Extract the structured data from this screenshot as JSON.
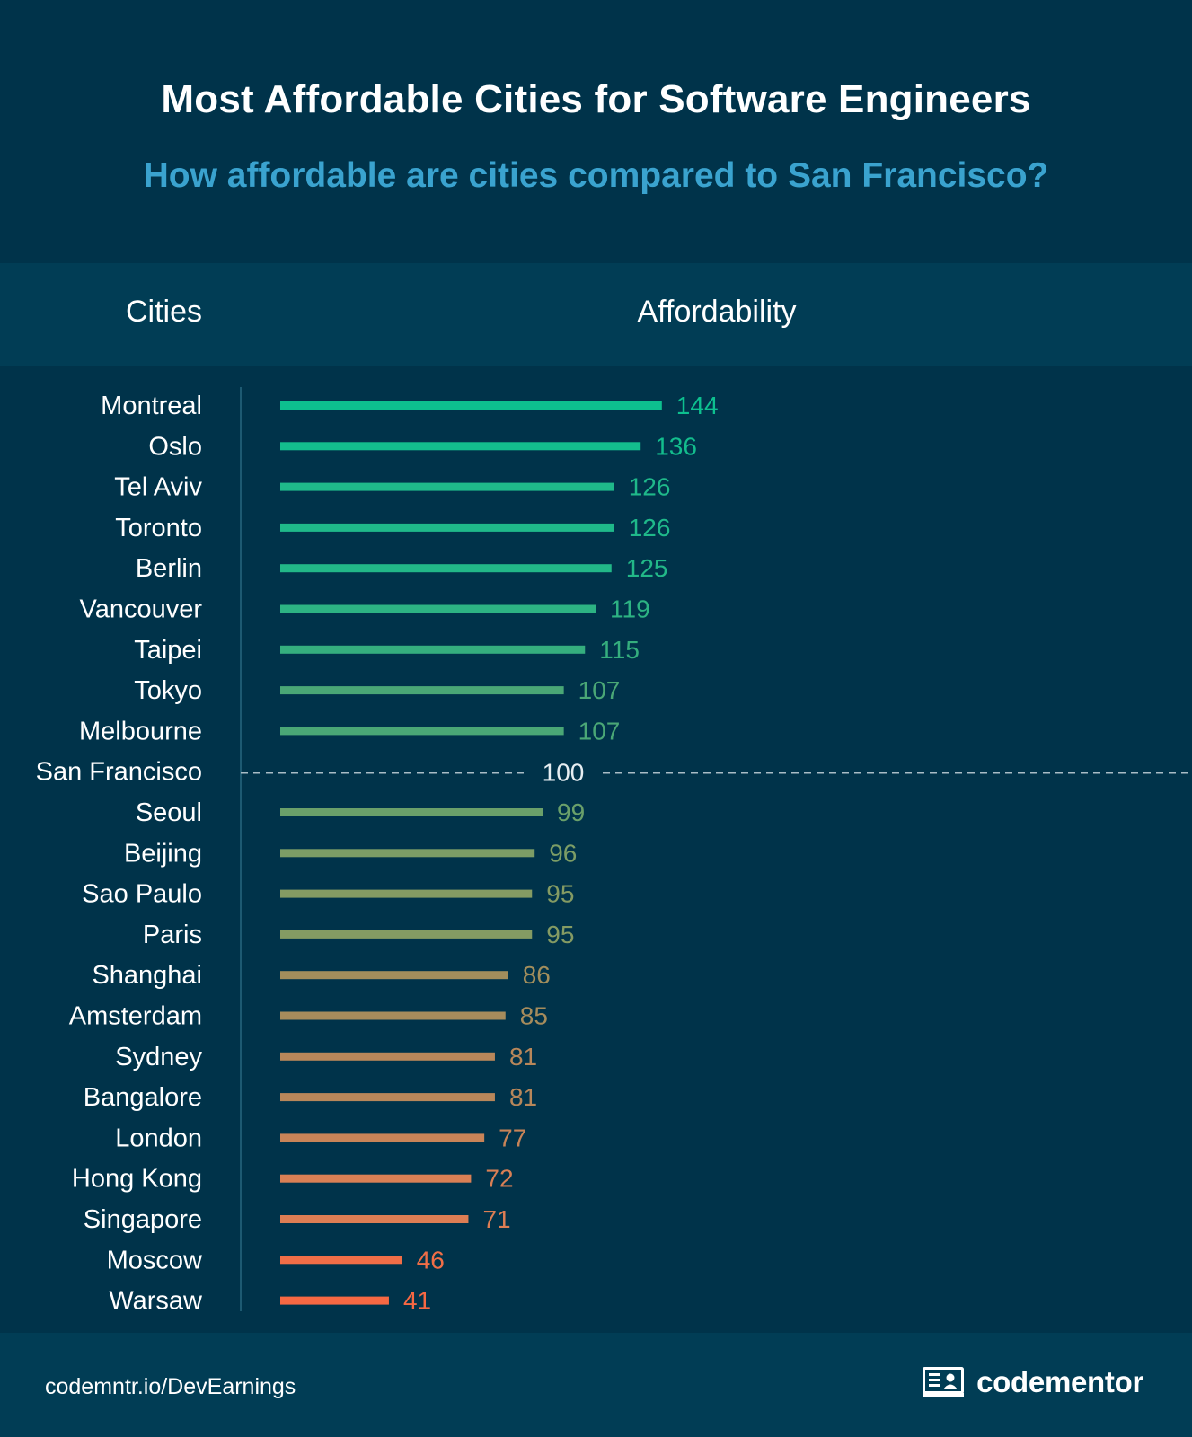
{
  "header": {
    "title": "Most Affordable Cities for Software Engineers",
    "subtitle": "How affordable are cities compared to San Francisco?"
  },
  "columns": {
    "cities": "Cities",
    "affordability": "Affordability"
  },
  "chart_data": {
    "type": "bar",
    "orientation": "horizontal",
    "title": "Most Affordable Cities for Software Engineers",
    "subtitle": "How affordable are cities compared to San Francisco?",
    "xlabel": "Affordability",
    "ylabel": "Cities",
    "reference": {
      "category": "San Francisco",
      "value": 100,
      "style": "dashed-line"
    },
    "categories": [
      "Montreal",
      "Oslo",
      "Tel Aviv",
      "Toronto",
      "Berlin",
      "Vancouver",
      "Taipei",
      "Tokyo",
      "Melbourne",
      "San Francisco",
      "Seoul",
      "Beijing",
      "Sao Paulo",
      "Paris",
      "Shanghai",
      "Amsterdam",
      "Sydney",
      "Bangalore",
      "London",
      "Hong Kong",
      "Singapore",
      "Moscow",
      "Warsaw"
    ],
    "values": [
      144,
      136,
      126,
      126,
      125,
      119,
      115,
      107,
      107,
      100,
      99,
      96,
      95,
      95,
      86,
      85,
      81,
      81,
      77,
      72,
      71,
      46,
      41
    ],
    "colors": [
      "#0dc08f",
      "#13bd8d",
      "#1fb98a",
      "#1fb98a",
      "#22b888",
      "#2db383",
      "#35ae7e",
      "#4aa776",
      "#4aa776",
      "#e6eef2",
      "#6aa06a",
      "#7c9d66",
      "#849b63",
      "#849b63",
      "#a28e5c",
      "#a68c5c",
      "#b8875a",
      "#b8875a",
      "#c88458",
      "#d98055",
      "#dd7e54",
      "#f06e47",
      "#f66843"
    ]
  },
  "footer": {
    "source": "codemntr.io/DevEarnings",
    "brand": "codementor",
    "brand_icon": "codementor-logo-icon"
  }
}
